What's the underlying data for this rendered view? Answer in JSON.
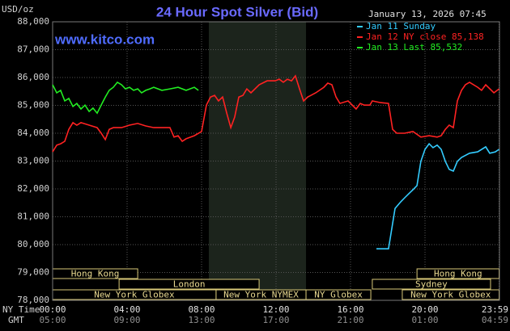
{
  "chart_data": {
    "type": "line",
    "title": "24 Hour Spot Silver (Bid)",
    "timestamp": "January 13, 2026 07:45",
    "y_label": "USD/oz",
    "watermark": "www.kitco.com",
    "x_row_labels": [
      "NY Time",
      "GMT"
    ],
    "xlim": [
      0,
      24
    ],
    "ylim": [
      78,
      88
    ],
    "yticks": [
      {
        "value": 78,
        "label": "78,000"
      },
      {
        "value": 79,
        "label": "79,000"
      },
      {
        "value": 80,
        "label": "80,000"
      },
      {
        "value": 81,
        "label": "81,000"
      },
      {
        "value": 82,
        "label": "82,000"
      },
      {
        "value": 83,
        "label": "83,000"
      },
      {
        "value": 84,
        "label": "84,000"
      },
      {
        "value": 85,
        "label": "85,000"
      },
      {
        "value": 86,
        "label": "86,000"
      },
      {
        "value": 87,
        "label": "87,000"
      },
      {
        "value": 88,
        "label": "88,000"
      }
    ],
    "xticks": [
      {
        "value": 0,
        "label": "00:00"
      },
      {
        "value": 4,
        "label": "04:00"
      },
      {
        "value": 8,
        "label": "08:00"
      },
      {
        "value": 12,
        "label": "12:00"
      },
      {
        "value": 16,
        "label": "16:00"
      },
      {
        "value": 20,
        "label": "20:00"
      },
      {
        "value": 23.98,
        "label": "23:59"
      }
    ],
    "xticks_gmt": [
      "05:00",
      "09:00",
      "13:00",
      "17:00",
      "21:00",
      "01:00",
      "04:59"
    ],
    "grid": true,
    "shaded": [
      8.39,
      13.61
    ],
    "sessions": [
      [
        {
          "name": "Hong Kong",
          "start": 0,
          "end": 4.57
        },
        {
          "name": "Hong Kong",
          "start": 19.57,
          "end": 23.98
        }
      ],
      [
        {
          "name": "London",
          "start": 3.57,
          "end": 11.09
        },
        {
          "name": "Sydney",
          "start": 17.17,
          "end": 23.52
        }
      ],
      [
        {
          "name": "New York Globex",
          "start": 0,
          "end": 8.78
        },
        {
          "name": "New York NYMEX",
          "start": 8.78,
          "end": 13.61
        },
        {
          "name": "NY Globex",
          "start": 13.61,
          "end": 17.09
        },
        {
          "name": "New York Globex",
          "start": 18.78,
          "end": 23.98
        }
      ]
    ],
    "series": [
      {
        "name": "Jan 11 Sunday",
        "color": "#33ccff",
        "x": [
          17.39,
          18.04,
          18.17,
          18.39,
          18.7,
          18.91,
          19.13,
          19.35,
          19.57,
          19.78,
          20.0,
          20.22,
          20.43,
          20.65,
          20.87,
          21.09,
          21.3,
          21.52,
          21.74,
          21.96,
          22.39,
          22.83,
          23.26,
          23.48,
          23.78,
          23.98
        ],
        "values": [
          79.85,
          79.85,
          80.38,
          81.3,
          81.54,
          81.68,
          81.83,
          81.97,
          82.12,
          82.99,
          83.42,
          83.62,
          83.48,
          83.57,
          83.42,
          82.99,
          82.7,
          82.64,
          82.99,
          83.13,
          83.28,
          83.33,
          83.51,
          83.28,
          83.33,
          83.42
        ]
      },
      {
        "name": "Jan 12 NY close 85,138",
        "color": "#ff2222",
        "x": [
          0,
          0.22,
          0.43,
          0.65,
          0.87,
          1.09,
          1.3,
          1.52,
          1.96,
          2.39,
          2.61,
          2.83,
          3.04,
          3.26,
          3.7,
          4.13,
          4.57,
          5.0,
          5.43,
          5.87,
          6.3,
          6.52,
          6.74,
          6.96,
          7.17,
          7.61,
          8.0,
          8.26,
          8.48,
          8.7,
          8.91,
          9.13,
          9.35,
          9.57,
          9.78,
          10.0,
          10.22,
          10.43,
          10.65,
          11.09,
          11.52,
          11.96,
          12.17,
          12.39,
          12.61,
          12.83,
          13.04,
          13.26,
          13.48,
          13.7,
          14.13,
          14.57,
          14.78,
          15.0,
          15.22,
          15.43,
          15.87,
          16.3,
          16.52,
          16.74,
          17.04,
          17.17,
          17.61,
          18.04,
          18.26,
          18.48,
          18.91,
          19.35,
          19.78,
          20.22,
          20.65,
          20.87,
          21.09,
          21.3,
          21.52,
          21.74,
          21.96,
          22.17,
          22.39,
          22.83,
          23.04,
          23.26,
          23.7,
          23.98
        ],
        "values": [
          83.33,
          83.57,
          83.62,
          83.71,
          84.14,
          84.38,
          84.29,
          84.38,
          84.29,
          84.2,
          84.0,
          83.77,
          84.14,
          84.2,
          84.2,
          84.29,
          84.35,
          84.26,
          84.2,
          84.2,
          84.2,
          83.86,
          83.91,
          83.71,
          83.8,
          83.91,
          84.06,
          85.01,
          85.3,
          85.36,
          85.16,
          85.3,
          84.72,
          84.2,
          84.58,
          85.3,
          85.36,
          85.59,
          85.45,
          85.74,
          85.88,
          85.88,
          85.94,
          85.83,
          85.94,
          85.88,
          86.06,
          85.59,
          85.16,
          85.3,
          85.45,
          85.65,
          85.8,
          85.74,
          85.3,
          85.07,
          85.16,
          84.87,
          85.07,
          85.01,
          85.01,
          85.16,
          85.1,
          85.07,
          84.14,
          84.0,
          84.0,
          84.06,
          83.86,
          83.91,
          83.86,
          83.91,
          84.14,
          84.29,
          84.2,
          85.16,
          85.54,
          85.74,
          85.83,
          85.65,
          85.54,
          85.74,
          85.45,
          85.59
        ]
      },
      {
        "name": "Jan 13 Last 85,532",
        "color": "#22ee22",
        "x": [
          0,
          0.22,
          0.43,
          0.65,
          0.87,
          1.09,
          1.3,
          1.52,
          1.74,
          1.96,
          2.17,
          2.39,
          2.61,
          2.83,
          3.04,
          3.26,
          3.48,
          3.7,
          3.91,
          4.13,
          4.35,
          4.57,
          4.78,
          5.0,
          5.22,
          5.43,
          5.87,
          6.3,
          6.74,
          7.17,
          7.61,
          7.83
        ],
        "values": [
          85.74,
          85.45,
          85.54,
          85.16,
          85.25,
          84.96,
          85.07,
          84.87,
          85.01,
          84.78,
          84.9,
          84.72,
          85.01,
          85.3,
          85.54,
          85.65,
          85.83,
          85.74,
          85.59,
          85.65,
          85.54,
          85.59,
          85.45,
          85.54,
          85.59,
          85.65,
          85.54,
          85.59,
          85.65,
          85.54,
          85.65,
          85.54
        ]
      }
    ]
  }
}
